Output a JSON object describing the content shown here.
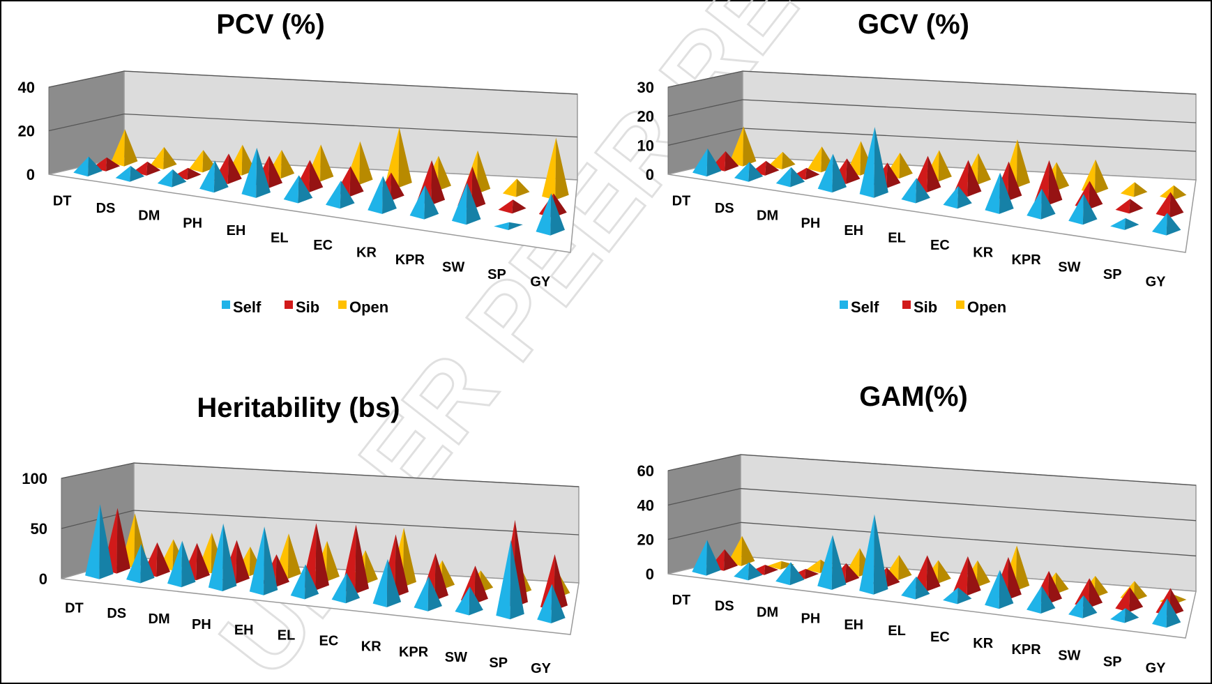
{
  "watermark": "UNDER PEER REVIEW",
  "colors": {
    "self": "#1fb3e8",
    "sib": "#d11a1a",
    "open": "#ffc000",
    "back_wall": "#dcdcdc",
    "side_wall": "#8c8c8c"
  },
  "chart_data": [
    {
      "type": "bar",
      "title": "PCV (%)",
      "categories": [
        "DT",
        "DS",
        "DM",
        "PH",
        "EH",
        "EL",
        "EC",
        "KR",
        "KPR",
        "SW",
        "SP",
        "GY"
      ],
      "series": [
        {
          "name": "Self",
          "values": [
            8,
            6,
            7,
            14,
            23,
            12,
            12,
            17,
            15,
            19,
            2,
            19
          ]
        },
        {
          "name": "Sib",
          "values": [
            5,
            5,
            4,
            13,
            14,
            14,
            13,
            12,
            20,
            19,
            5,
            10
          ]
        },
        {
          "name": "Open",
          "values": [
            16,
            9,
            9,
            13,
            12,
            16,
            19,
            27,
            15,
            19,
            7,
            28
          ]
        }
      ],
      "yticks": [
        "0",
        "20",
        "40"
      ],
      "ylim": [
        0,
        40
      ],
      "legend_position": "bottom"
    },
    {
      "type": "bar",
      "title": "GCV (%)",
      "categories": [
        "DT",
        "DS",
        "DM",
        "PH",
        "EH",
        "EL",
        "EC",
        "KR",
        "KPR",
        "SW",
        "SP",
        "GY"
      ],
      "series": [
        {
          "name": "Self",
          "values": [
            9,
            6,
            6,
            13,
            25,
            8,
            7,
            14,
            10,
            10,
            3,
            7
          ]
        },
        {
          "name": "Sib",
          "values": [
            6,
            4,
            3,
            8,
            8,
            12,
            12,
            13,
            15,
            9,
            4,
            8
          ]
        },
        {
          "name": "Open",
          "values": [
            13,
            5,
            8,
            11,
            8,
            10,
            10,
            16,
            9,
            11,
            4,
            4
          ]
        }
      ],
      "yticks": [
        "0",
        "10",
        "20",
        "30"
      ],
      "ylim": [
        0,
        30
      ],
      "legend_position": "bottom"
    },
    {
      "type": "bar",
      "title": "Heritability (bs)",
      "categories": [
        "DT",
        "DS",
        "DM",
        "PH",
        "EH",
        "EL",
        "EC",
        "KR",
        "KPR",
        "SW",
        "SP",
        "GY"
      ],
      "series": [
        {
          "name": "Self",
          "values": [
            80,
            40,
            48,
            72,
            73,
            35,
            30,
            50,
            35,
            28,
            85,
            40
          ]
        },
        {
          "name": "Sib",
          "values": [
            68,
            34,
            37,
            44,
            32,
            70,
            72,
            65,
            48,
            38,
            92,
            58
          ]
        },
        {
          "name": "Open",
          "values": [
            55,
            30,
            40,
            28,
            45,
            40,
            33,
            60,
            28,
            20,
            30,
            25
          ]
        }
      ],
      "yticks": [
        "0",
        "50",
        "100"
      ],
      "ylim": [
        0,
        100
      ],
      "legend_position": "bottom"
    },
    {
      "type": "bar",
      "title": "GAM(%)",
      "categories": [
        "DT",
        "DS",
        "DM",
        "PH",
        "EH",
        "EL",
        "EC",
        "KR",
        "KPR",
        "SW",
        "SP",
        "GY"
      ],
      "series": [
        {
          "name": "Self",
          "values": [
            20,
            9,
            12,
            32,
            48,
            12,
            8,
            22,
            15,
            12,
            7,
            16
          ]
        },
        {
          "name": "Sib",
          "values": [
            11,
            4,
            4,
            10,
            10,
            20,
            22,
            24,
            18,
            16,
            13,
            15
          ]
        },
        {
          "name": "Open",
          "values": [
            16,
            3,
            6,
            15,
            13,
            12,
            14,
            25,
            11,
            11,
            10,
            4
          ]
        }
      ],
      "yticks": [
        "0",
        "20",
        "40",
        "60"
      ],
      "ylim": [
        0,
        60
      ],
      "legend_position": "bottom"
    }
  ]
}
